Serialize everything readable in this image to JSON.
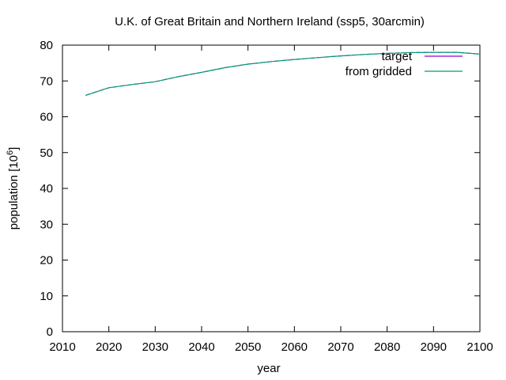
{
  "chart_data": {
    "type": "line",
    "title": "U.K. of Great Britain and Northern Ireland (ssp5, 30arcmin)",
    "xlabel": "year",
    "ylabel": "population [10",
    "ylabel_exp": "6",
    "ylabel_end": "]",
    "xlim": [
      2010,
      2100
    ],
    "ylim": [
      0,
      80
    ],
    "xticks": [
      2010,
      2020,
      2030,
      2040,
      2050,
      2060,
      2070,
      2080,
      2090,
      2100
    ],
    "yticks": [
      0,
      10,
      20,
      30,
      40,
      50,
      60,
      70,
      80
    ],
    "grid": false,
    "legend_position": "top-right",
    "series": [
      {
        "name": "target",
        "color": "#9400d3",
        "x": [
          2015,
          2020,
          2025,
          2030,
          2035,
          2040,
          2045,
          2050,
          2055,
          2060,
          2065,
          2070,
          2075,
          2080,
          2085,
          2090,
          2095,
          2100
        ],
        "y": [
          66.0,
          68.1,
          69.0,
          69.8,
          71.2,
          72.4,
          73.7,
          74.7,
          75.4,
          76.0,
          76.5,
          77.0,
          77.4,
          77.7,
          77.9,
          78.0,
          78.0,
          77.5
        ]
      },
      {
        "name": "from gridded",
        "color": "#009e73",
        "x": [
          2015,
          2020,
          2025,
          2030,
          2035,
          2040,
          2045,
          2050,
          2055,
          2060,
          2065,
          2070,
          2075,
          2080,
          2085,
          2090,
          2095,
          2100
        ],
        "y": [
          66.0,
          68.1,
          69.0,
          69.8,
          71.2,
          72.4,
          73.7,
          74.7,
          75.4,
          76.0,
          76.5,
          77.0,
          77.4,
          77.7,
          77.9,
          78.0,
          78.0,
          77.5
        ]
      }
    ]
  }
}
